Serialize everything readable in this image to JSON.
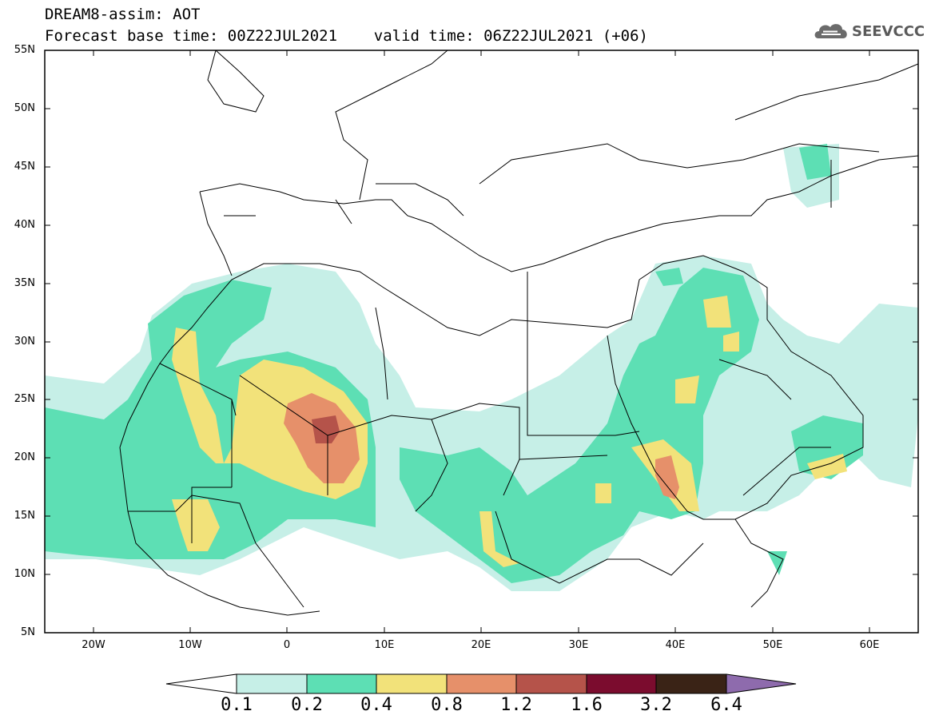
{
  "title": {
    "line1": "DREAM8-assim: AOT",
    "line2": "Forecast base time: 00Z22JUL2021    valid time: 06Z22JUL2021 (+06)"
  },
  "logo": {
    "text": "SEEVCCC",
    "icon": "cloud-logo-icon"
  },
  "map": {
    "lat_labels": [
      "55N",
      "50N",
      "45N",
      "40N",
      "35N",
      "30N",
      "25N",
      "20N",
      "15N",
      "10N",
      "5N"
    ],
    "lon_labels": [
      "20W",
      "10W",
      "0",
      "10E",
      "20E",
      "30E",
      "40E",
      "50E",
      "60E"
    ],
    "lon_range": [
      -25,
      65
    ],
    "lat_range": [
      5,
      55
    ]
  },
  "colorbar": {
    "labels": [
      "0.1",
      "0.2",
      "0.4",
      "0.8",
      "1.2",
      "1.6",
      "3.2",
      "6.4"
    ],
    "colors": [
      "#ffffff",
      "#c6efe7",
      "#5ddfb4",
      "#f2e27a",
      "#e6906a",
      "#b5534a",
      "#7b0c2e",
      "#3a2316",
      "#8e6bad"
    ]
  }
}
